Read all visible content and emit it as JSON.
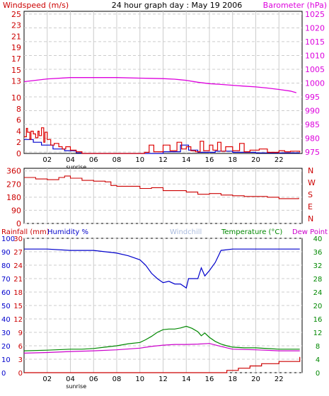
{
  "chart_data": [
    {
      "type": "line",
      "title": "24 hour graph day : May 19 2006",
      "left_label": "Windspeed (m/s)",
      "right_label": "Barometer (hPa)",
      "x_ticks": [
        "02",
        "04",
        "06",
        "08",
        "10",
        "12",
        "14",
        "16",
        "18",
        "20",
        "22"
      ],
      "x_note": "sunrise",
      "left_ticks": [
        "0",
        "2",
        "4",
        "6",
        "8",
        "10",
        "13",
        "15",
        "17",
        "19",
        "21",
        "23",
        "25"
      ],
      "right_ticks": [
        "975",
        "980",
        "985",
        "990",
        "995",
        "1000",
        "1005",
        "1010",
        "1015",
        "1020",
        "1025"
      ],
      "ylim_left": [
        0,
        25.5
      ],
      "ylim_right": [
        974.5,
        1026
      ],
      "x_range": [
        0,
        24
      ],
      "colors": {
        "wind_gust": "#dd0000",
        "wind_avg": "#0000cc",
        "barometer": "#dd00dd"
      },
      "series": [
        {
          "key": "barometer",
          "axis": "right",
          "x": [
            0,
            2,
            4,
            6,
            8,
            10,
            11,
            12,
            13,
            14,
            15,
            16,
            17,
            18,
            19,
            20,
            21,
            22,
            23,
            23.5
          ],
          "values": [
            1000.5,
            1001.5,
            1002,
            1002,
            1002,
            1001.8,
            1001.7,
            1001.6,
            1001.4,
            1001,
            1000.3,
            999.8,
            999.5,
            999.2,
            998.9,
            998.6,
            998.2,
            997.7,
            997.1,
            996.5
          ]
        },
        {
          "key": "wind_avg",
          "axis": "left",
          "x": [
            0,
            0.8,
            1.5,
            2.5,
            3.5,
            4.5,
            5,
            10.5,
            12,
            13.5,
            14.2,
            15,
            16.5,
            18,
            20,
            22,
            23.8
          ],
          "values": [
            2.5,
            2,
            1.5,
            0.8,
            0.5,
            0.1,
            0,
            0,
            0.3,
            1.5,
            0.6,
            0.2,
            0.4,
            0.2,
            0.1,
            0.1,
            0.1
          ]
        },
        {
          "key": "wind_gust",
          "axis": "left",
          "x": [
            0,
            0.2,
            0.3,
            0.5,
            0.6,
            0.8,
            1,
            1.2,
            1.3,
            1.5,
            1.7,
            1.8,
            2,
            2.3,
            2.6,
            3,
            3.3,
            3.6,
            4,
            4.5,
            5,
            10.4,
            10.8,
            11.2,
            12,
            12.6,
            13.2,
            13.6,
            14,
            14.4,
            14.8,
            15.2,
            15.5,
            16,
            16.3,
            16.7,
            17,
            17.4,
            18,
            18.6,
            19,
            19.5,
            20.3,
            21,
            22,
            22.5,
            23,
            23.8
          ],
          "values": [
            3,
            4.5,
            3.8,
            2.5,
            4,
            3.5,
            2.8,
            4,
            3.2,
            4.6,
            2,
            3.8,
            2.5,
            1.5,
            1.8,
            1.2,
            0.8,
            1.2,
            0.6,
            0.3,
            0,
            0.2,
            1.5,
            0.3,
            1.5,
            0.5,
            2,
            0.8,
            1.2,
            0.5,
            0.3,
            2.2,
            0.5,
            1.5,
            0.6,
            2,
            0.4,
            1.2,
            0.5,
            1.8,
            0.3,
            0.6,
            0.8,
            0.2,
            0.5,
            0.3,
            0.4,
            0.2
          ]
        }
      ]
    },
    {
      "type": "line",
      "series_name": "Wind direction",
      "left_ticks": [
        "0",
        "90",
        "180",
        "270",
        "360"
      ],
      "right_ticks": [
        "N",
        "W",
        "S",
        "E",
        "N"
      ],
      "ylim": [
        0,
        378
      ],
      "x_range": [
        0,
        24
      ],
      "color": "#cc0000",
      "series": [
        {
          "key": "wind_dir",
          "x": [
            0,
            1,
            2,
            3,
            3.5,
            4,
            5,
            6,
            7,
            7.5,
            8,
            9,
            10,
            11,
            12,
            13,
            14,
            15,
            16,
            17,
            18,
            19,
            20,
            21,
            22,
            23,
            23.7
          ],
          "values": [
            315,
            305,
            300,
            315,
            325,
            310,
            295,
            290,
            285,
            260,
            255,
            255,
            240,
            245,
            225,
            225,
            215,
            200,
            205,
            195,
            190,
            185,
            185,
            180,
            170,
            170,
            175
          ]
        }
      ]
    },
    {
      "type": "line",
      "labels": {
        "rainfall": "Rainfall (mm)",
        "humidity": "Humidity %",
        "windchill": "Windchill",
        "temperature": "Temperature (°C)",
        "dewpoint": "Dew Point"
      },
      "left_ticks": [
        "0",
        "10",
        "20",
        "30",
        "40",
        "50",
        "60",
        "70",
        "80",
        "90",
        "100"
      ],
      "rain_ticks": [
        "0",
        "3",
        "6",
        "9",
        "12",
        "15",
        "18",
        "21",
        "24",
        "27",
        "30"
      ],
      "right_ticks": [
        "0",
        "4",
        "8",
        "12",
        "16",
        "20",
        "24",
        "28",
        "32",
        "36",
        "40"
      ],
      "x_ticks": [
        "02",
        "04",
        "06",
        "08",
        "10",
        "12",
        "14",
        "16",
        "18",
        "20",
        "22"
      ],
      "x_note": "sunrise",
      "ylim_humidity": [
        0,
        100
      ],
      "ylim_rain": [
        0,
        30
      ],
      "ylim_temp": [
        0,
        40
      ],
      "x_range": [
        0,
        24
      ],
      "colors": {
        "rainfall": "#cc0000",
        "humidity": "#0000cc",
        "windchill": "#aabbdd",
        "temperature": "#008800",
        "dewpoint": "#cc00cc"
      },
      "series": [
        {
          "key": "humidity",
          "x": [
            0,
            2,
            4,
            6,
            7,
            8,
            9,
            10,
            10.5,
            11,
            11.5,
            12,
            12.5,
            13,
            13.5,
            14,
            14.2,
            15,
            15.3,
            15.6,
            16,
            16.5,
            17,
            18,
            20,
            22,
            23.8
          ],
          "values": [
            92,
            92,
            91,
            91,
            90,
            89,
            87,
            84,
            80,
            74,
            70,
            67,
            68,
            66,
            66,
            63,
            70,
            70,
            78,
            72,
            76,
            82,
            91,
            92,
            92,
            92,
            92
          ]
        },
        {
          "key": "temperature",
          "x": [
            0,
            2,
            4,
            5,
            6,
            7,
            8,
            9,
            10,
            10.5,
            11,
            11.5,
            12,
            12.5,
            13,
            13.5,
            14,
            14.5,
            15,
            15.3,
            15.6,
            16,
            16.5,
            17,
            17.5,
            18,
            19,
            20,
            22,
            23.8
          ],
          "values": [
            6.5,
            6.7,
            7,
            7,
            7.2,
            7.6,
            8,
            8.6,
            9,
            9.8,
            10.8,
            12,
            12.8,
            13,
            13,
            13.3,
            13.8,
            13.2,
            12.2,
            11,
            11.8,
            10.5,
            9.3,
            8.5,
            8,
            7.6,
            7.4,
            7.4,
            7,
            7
          ]
        },
        {
          "key": "dewpoint",
          "x": [
            0,
            2,
            4,
            6,
            8,
            10,
            11,
            12,
            13,
            14,
            15,
            16,
            17,
            18,
            20,
            22,
            23.8
          ],
          "values": [
            5.8,
            6,
            6.3,
            6.5,
            6.8,
            7.3,
            7.8,
            8.2,
            8.4,
            8.4,
            8.5,
            8.7,
            7.8,
            7,
            6.8,
            6.5,
            6.5
          ]
        },
        {
          "key": "rainfall",
          "axis": "rain",
          "x": [
            0,
            16,
            17.5,
            18.5,
            19.5,
            20.5,
            21,
            22,
            23,
            23.8
          ],
          "values": [
            0,
            0,
            0.5,
            1,
            1.5,
            2,
            2,
            2.5,
            2.5,
            3.5
          ]
        }
      ]
    }
  ]
}
